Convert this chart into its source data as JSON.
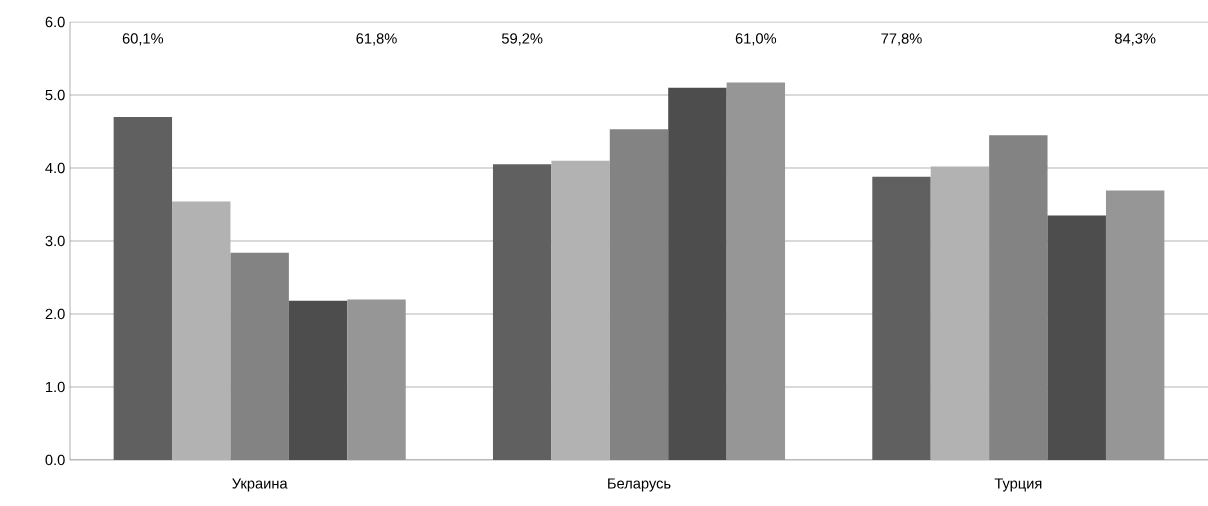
{
  "chart_data": {
    "type": "bar",
    "categories": [
      "Украина",
      "Беларусь",
      "Турция"
    ],
    "series": [
      {
        "color": "#606060",
        "values": [
          4.7,
          4.05,
          3.88
        ]
      },
      {
        "color": "#b2b2b2",
        "values": [
          3.54,
          4.1,
          4.02
        ]
      },
      {
        "color": "#838383",
        "values": [
          2.84,
          4.53,
          4.45
        ]
      },
      {
        "color": "#4d4d4d",
        "values": [
          2.18,
          5.1,
          3.35
        ]
      },
      {
        "color": "#969696",
        "values": [
          2.2,
          5.17,
          3.69
        ]
      }
    ],
    "ylim": [
      0,
      6
    ],
    "yticks": [
      {
        "value": 0,
        "label": "0.0"
      },
      {
        "value": 1,
        "label": "1.0"
      },
      {
        "value": 2,
        "label": "2.0"
      },
      {
        "value": 3,
        "label": "3.0"
      },
      {
        "value": 4,
        "label": "4.0"
      },
      {
        "value": 5,
        "label": "5.0"
      },
      {
        "value": 6,
        "label": "6.0"
      }
    ],
    "grid": "y",
    "annotations": [
      "60,1%",
      "61,8%",
      "59,2%",
      "61,0%",
      "77,8%",
      "84,3%"
    ]
  }
}
